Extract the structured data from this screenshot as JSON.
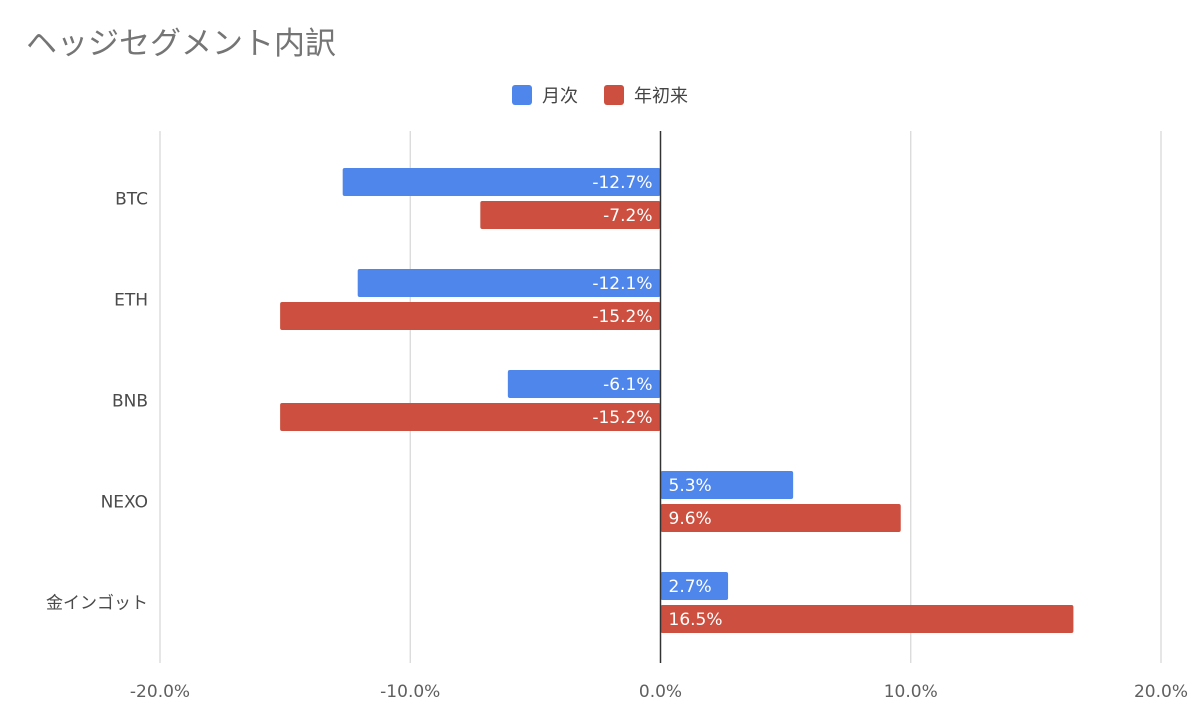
{
  "chart_data": {
    "type": "bar",
    "orientation": "horizontal",
    "title": "ヘッジセグメント内訳",
    "categories": [
      "BTC",
      "ETH",
      "BNB",
      "NEXO",
      "金インゴット"
    ],
    "series": [
      {
        "name": "月次",
        "color": "#4f86ec",
        "values": [
          -12.7,
          -12.1,
          -6.1,
          5.3,
          2.7
        ],
        "labels": [
          "-12.7%",
          "-12.1%",
          "-6.1%",
          "5.3%",
          "2.7%"
        ]
      },
      {
        "name": "年初来",
        "color": "#cc4f3f",
        "values": [
          -7.2,
          -15.2,
          -15.2,
          9.6,
          16.5
        ],
        "labels": [
          "-7.2%",
          "-15.2%",
          "-15.2%",
          "9.6%",
          "16.5%"
        ]
      }
    ],
    "xlim": [
      -20,
      20
    ],
    "xticks": [
      -20,
      -10,
      0,
      10,
      20
    ],
    "xtick_labels": [
      "-20.0%",
      "-10.0%",
      "0.0%",
      "10.0%",
      "20.0%"
    ],
    "legend_position": "top-center",
    "grid": true
  }
}
